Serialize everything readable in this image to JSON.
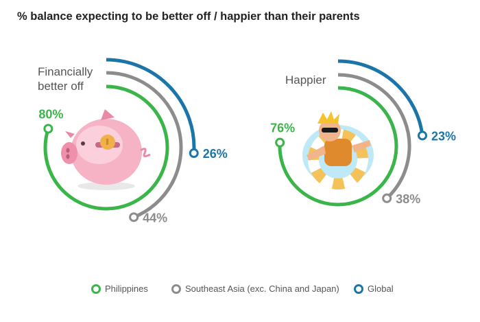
{
  "title": "% balance expecting to be better off / happier than their parents",
  "colors": {
    "philippines": "#39b54a",
    "southeast_asia": "#8c8c8c",
    "global": "#1b75a8"
  },
  "legend": [
    {
      "label": "Philippines",
      "color": "#39b54a"
    },
    {
      "label": "Southeast Asia (exc. China and Japan)",
      "color": "#8c8c8c"
    },
    {
      "label": "Global",
      "color": "#1b75a8"
    }
  ],
  "chart_data": [
    {
      "type": "radial-bar",
      "label_lines": [
        "Financially",
        "better off"
      ],
      "icon": "piggy-bank-icon",
      "series": [
        {
          "name": "Philippines",
          "value": 80,
          "label": "80%"
        },
        {
          "name": "Southeast Asia (exc. China and Japan)",
          "value": 44,
          "label": "44%"
        },
        {
          "name": "Global",
          "value": 26,
          "label": "26%"
        }
      ]
    },
    {
      "type": "radial-bar",
      "label_lines": [
        "Happier"
      ],
      "icon": "swim-ring-icon",
      "series": [
        {
          "name": "Philippines",
          "value": 76,
          "label": "76%"
        },
        {
          "name": "Southeast Asia (exc. China and Japan)",
          "value": 38,
          "label": "38%"
        },
        {
          "name": "Global",
          "value": 23,
          "label": "23%"
        }
      ]
    }
  ]
}
